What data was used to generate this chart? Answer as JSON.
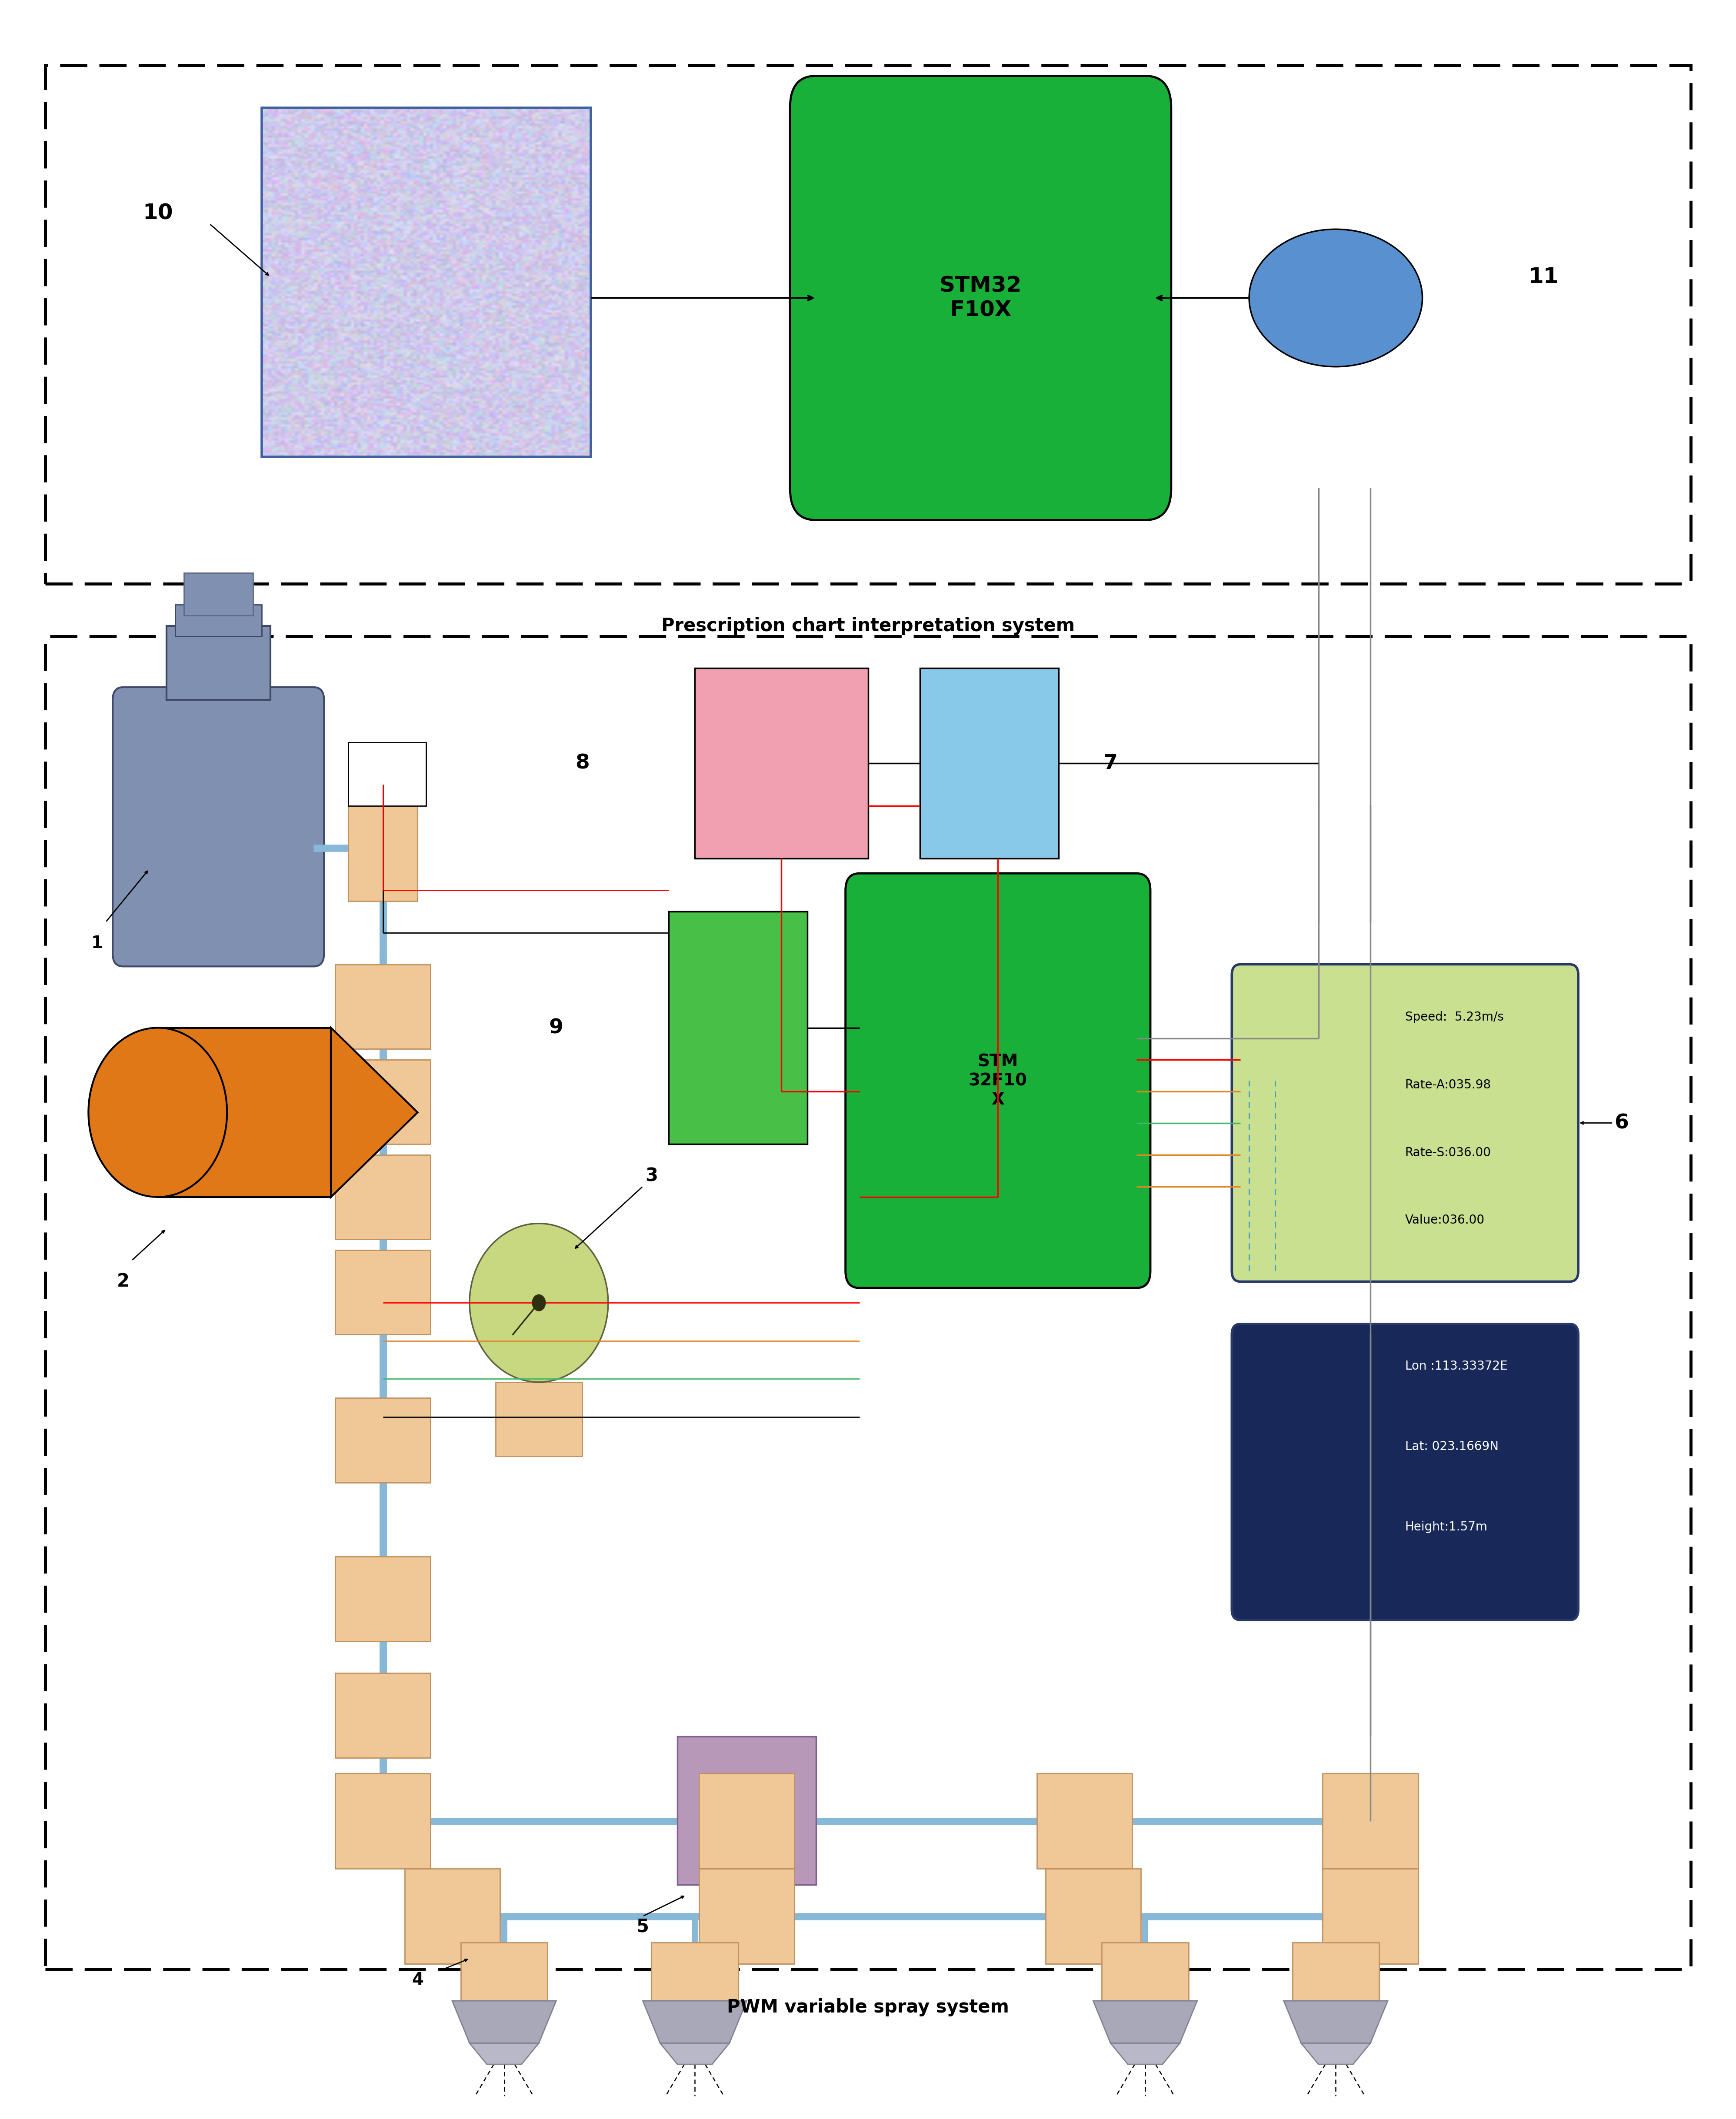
{
  "fig_width": 39.93,
  "fig_height": 48.75,
  "bg": "#ffffff",
  "top_label": "Prescription chart interpretation system",
  "bot_label": "PWM variable spray system",
  "stm_top": "STM32\nF10X",
  "stm_bot": "STM\n32F10\nX",
  "green_color": "#18b038",
  "pink_color": "#f0a0b0",
  "sky_color": "#88c8e8",
  "blue_ellipse": "#5890d0",
  "pipe_blue": "#88b8d8",
  "joint_tan": "#f0c898",
  "pump_orange": "#e07818",
  "tank_blue": "#7888b0",
  "gauge_green": "#c8d880",
  "display_green_bg": "#c8e090",
  "display_green_border": "#283868",
  "display_dark_bg": "#182858",
  "nozzle_gray": "#a8a8b8",
  "cross_purple": "#b898b8",
  "pwm_green": "#48c048",
  "display1": [
    "Speed:  5.23m/s",
    "Rate-A:035.98",
    "Rate-S:036.00",
    "Value:036.00"
  ],
  "display2": [
    "Lon :113.33372E",
    "Lat: 023.1669N",
    "Height:1.57m"
  ]
}
